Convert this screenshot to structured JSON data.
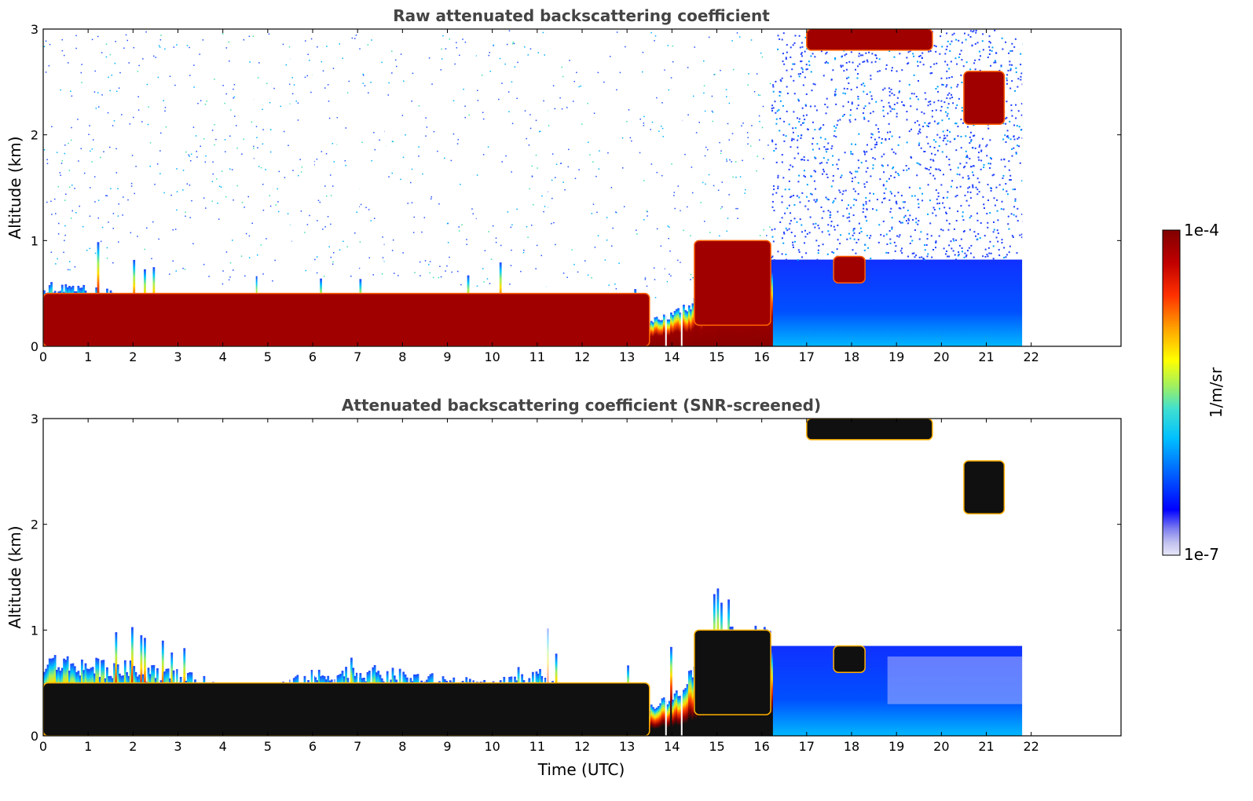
{
  "chart_data": [
    {
      "type": "heatmap",
      "title": "Raw attenuated backscattering coefficient",
      "xlabel": "",
      "ylabel": "Altitude (km)",
      "xlim": [
        0,
        24
      ],
      "ylim": [
        0,
        3
      ],
      "x_ticks": [
        "0",
        "1",
        "2",
        "3",
        "4",
        "5",
        "6",
        "7",
        "8",
        "9",
        "10",
        "11",
        "12",
        "13",
        "14",
        "15",
        "16",
        "17",
        "18",
        "19",
        "20",
        "21",
        "22"
      ],
      "y_ticks": [
        "0",
        "1",
        "2",
        "3"
      ],
      "data_end_time": 21.8,
      "colorscale": "log",
      "layer_top_km": [
        [
          0,
          0.55
        ],
        [
          1,
          0.5
        ],
        [
          2,
          0.45
        ],
        [
          3,
          0.4
        ],
        [
          4,
          0.35
        ],
        [
          5,
          0.35
        ],
        [
          6,
          0.42
        ],
        [
          7,
          0.45
        ],
        [
          8,
          0.4
        ],
        [
          9,
          0.38
        ],
        [
          10,
          0.35
        ],
        [
          11,
          0.4
        ],
        [
          12,
          0.25
        ],
        [
          13,
          0.15
        ],
        [
          14,
          0.3
        ],
        [
          15,
          0.55
        ],
        [
          16,
          0.6
        ],
        [
          17,
          0.82
        ],
        [
          18,
          0.8
        ],
        [
          19,
          0.8
        ],
        [
          20,
          0.8
        ],
        [
          21,
          0.8
        ],
        [
          21.8,
          0.8
        ]
      ],
      "features": [
        {
          "label": "surface aerosol layer",
          "t_start": 0,
          "t_end": 13.5,
          "alt_km": [
            0,
            0.5
          ],
          "level": "high"
        },
        {
          "label": "cloud near 15-16 UTC",
          "t_start": 14.5,
          "t_end": 16.2,
          "alt_km": [
            0.2,
            1.0
          ],
          "level": "high"
        },
        {
          "label": "cloud near 18 UTC",
          "t_start": 17.6,
          "t_end": 18.3,
          "alt_km": [
            0.6,
            0.85
          ],
          "level": "high"
        },
        {
          "label": "cloud near 21 UTC",
          "t_start": 20.5,
          "t_end": 21.4,
          "alt_km": [
            2.1,
            2.6
          ],
          "level": "high"
        },
        {
          "label": "high cloud near 17-19.5 UTC",
          "t_start": 17.0,
          "t_end": 19.8,
          "alt_km": [
            2.8,
            3.0
          ],
          "level": "high"
        }
      ]
    },
    {
      "type": "heatmap",
      "title": "Attenuated backscattering coefficient (SNR-screened)",
      "xlabel": "Time (UTC)",
      "ylabel": "Altitude (km)",
      "xlim": [
        0,
        24
      ],
      "ylim": [
        0,
        3
      ],
      "x_ticks": [
        "0",
        "1",
        "2",
        "3",
        "4",
        "5",
        "6",
        "7",
        "8",
        "9",
        "10",
        "11",
        "12",
        "13",
        "14",
        "15",
        "16",
        "17",
        "18",
        "19",
        "20",
        "21",
        "22"
      ],
      "y_ticks": [
        "0",
        "1",
        "2",
        "3"
      ],
      "data_end_time": 21.8,
      "colorscale": "log",
      "layer_top_km": [
        [
          0,
          0.7
        ],
        [
          1,
          0.65
        ],
        [
          2,
          0.62
        ],
        [
          3,
          0.55
        ],
        [
          4,
          0.45
        ],
        [
          5,
          0.42
        ],
        [
          6,
          0.55
        ],
        [
          7,
          0.6
        ],
        [
          8,
          0.55
        ],
        [
          9,
          0.5
        ],
        [
          10,
          0.45
        ],
        [
          11,
          0.55
        ],
        [
          12,
          0.3
        ],
        [
          13,
          0.2
        ],
        [
          14,
          0.35
        ],
        [
          15,
          0.9
        ],
        [
          16,
          0.9
        ],
        [
          17,
          0.85
        ],
        [
          18,
          0.85
        ],
        [
          19,
          0.85
        ],
        [
          20,
          0.85
        ],
        [
          21,
          0.85
        ],
        [
          21.8,
          0.85
        ]
      ]
    }
  ],
  "colorbar": {
    "label": "1/m/sr",
    "max_label": "1e-4",
    "min_label": "1e-7",
    "scale": "log",
    "range": [
      1e-07,
      0.0001
    ],
    "colors": [
      "#e8e8f8",
      "#c0c0f0",
      "#8080f0",
      "#0000ff",
      "#0060ff",
      "#00c0ff",
      "#40e0d0",
      "#a0f060",
      "#ffff00",
      "#ffa000",
      "#ff3000",
      "#c00000",
      "#800000"
    ]
  }
}
